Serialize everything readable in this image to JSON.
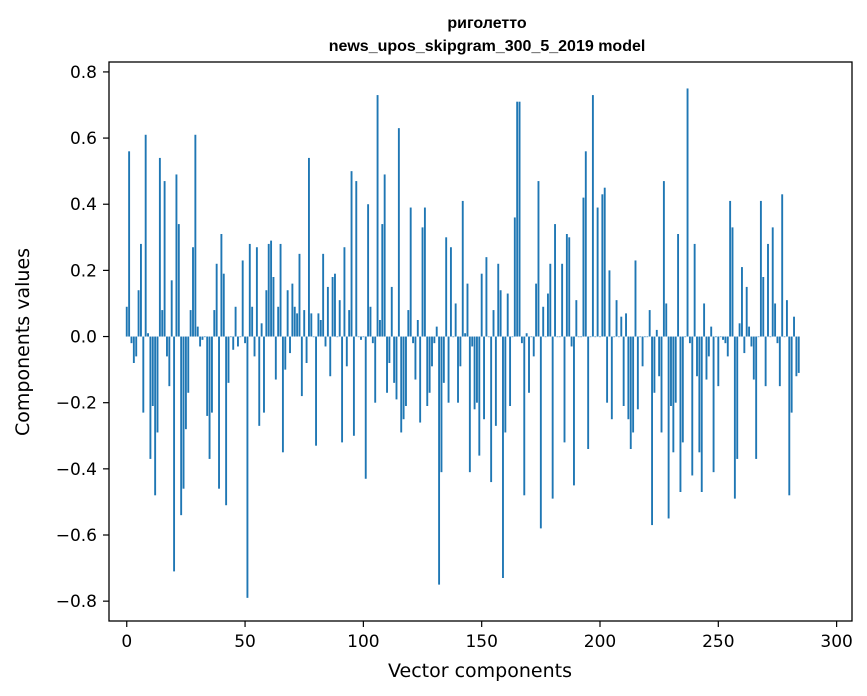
{
  "chart_data": {
    "type": "bar",
    "title": "риголетто",
    "subtitle": "news_upos_skipgram_300_5_2019 model",
    "xlabel": "Vector components",
    "ylabel": "Components values",
    "xlim": [
      -7.5,
      306.5
    ],
    "ylim": [
      -0.86,
      0.83
    ],
    "xticks": [
      0,
      50,
      100,
      150,
      200,
      250,
      300
    ],
    "yticks": [
      -0.8,
      -0.6,
      -0.4,
      -0.2,
      0.0,
      0.2,
      0.4,
      0.6,
      0.8
    ],
    "xtick_labels": [
      "0",
      "50",
      "100",
      "150",
      "200",
      "250",
      "300"
    ],
    "ytick_labels": [
      "−0.8",
      "−0.6",
      "−0.4",
      "−0.2",
      "0.0",
      "0.2",
      "0.4",
      "0.6",
      "0.8"
    ],
    "grid": false,
    "bar_color": "#1f77b4",
    "values": [
      0.09,
      0.56,
      -0.02,
      -0.08,
      -0.06,
      0.14,
      0.28,
      -0.23,
      0.61,
      0.01,
      -0.37,
      -0.21,
      -0.48,
      -0.29,
      0.54,
      0.08,
      0.47,
      -0.06,
      -0.15,
      0.17,
      -0.71,
      0.49,
      0.34,
      -0.54,
      -0.46,
      -0.28,
      -0.17,
      0.08,
      0.27,
      0.61,
      0.03,
      -0.03,
      -0.01,
      0.0,
      -0.24,
      -0.37,
      -0.23,
      0.08,
      0.22,
      -0.46,
      0.31,
      0.19,
      -0.51,
      -0.14,
      0.0,
      -0.04,
      0.09,
      -0.03,
      0.0,
      0.23,
      -0.02,
      -0.79,
      0.28,
      0.09,
      -0.06,
      0.27,
      -0.27,
      0.04,
      -0.23,
      0.14,
      0.28,
      0.29,
      0.18,
      -0.13,
      0.09,
      0.28,
      -0.35,
      -0.1,
      0.14,
      -0.05,
      0.16,
      0.09,
      0.07,
      0.25,
      -0.18,
      0.08,
      -0.08,
      0.54,
      0.07,
      0.0,
      -0.33,
      0.07,
      0.05,
      0.25,
      -0.03,
      0.15,
      -0.12,
      0.18,
      0.19,
      0.0,
      0.11,
      -0.32,
      0.27,
      -0.09,
      0.08,
      0.5,
      -0.3,
      0.47,
      0.0,
      -0.01,
      0.0,
      -0.43,
      0.4,
      0.09,
      -0.02,
      -0.2,
      0.73,
      0.05,
      0.34,
      0.49,
      -0.17,
      -0.08,
      0.15,
      -0.14,
      -0.19,
      0.63,
      -0.29,
      -0.25,
      -0.21,
      0.08,
      0.39,
      -0.02,
      -0.13,
      0.05,
      -0.26,
      0.33,
      0.39,
      -0.21,
      -0.17,
      -0.09,
      -0.02,
      0.03,
      -0.75,
      -0.41,
      -0.14,
      0.3,
      -0.2,
      0.27,
      0.0,
      0.1,
      -0.2,
      -0.09,
      0.41,
      0.01,
      0.16,
      -0.41,
      -0.03,
      -0.22,
      -0.2,
      -0.36,
      0.19,
      -0.25,
      0.24,
      0.0,
      -0.44,
      0.08,
      -0.27,
      0.22,
      0.14,
      -0.73,
      -0.29,
      0.13,
      -0.21,
      0.0,
      0.36,
      0.71,
      0.71,
      -0.02,
      -0.48,
      0.01,
      -0.17,
      0.0,
      -0.06,
      0.16,
      0.47,
      -0.58,
      0.09,
      0.0,
      0.13,
      0.22,
      -0.49,
      0.34,
      0.0,
      0.0,
      0.22,
      -0.32,
      0.31,
      0.3,
      -0.03,
      -0.45,
      0.11,
      0.0,
      0.0,
      0.42,
      0.56,
      -0.34,
      0.0,
      0.73,
      0.0,
      0.39,
      0.0,
      0.43,
      0.45,
      -0.2,
      0.2,
      -0.25,
      0.0,
      0.11,
      0.0,
      0.06,
      -0.21,
      0.07,
      -0.25,
      -0.34,
      -0.29,
      0.23,
      -0.22,
      0.0,
      -0.09,
      0.0,
      0.0,
      0.08,
      -0.57,
      -0.17,
      0.02,
      -0.12,
      -0.29,
      0.47,
      0.1,
      -0.55,
      -0.21,
      -0.35,
      -0.2,
      0.31,
      -0.47,
      -0.32,
      0.0,
      0.75,
      -0.02,
      -0.42,
      0.28,
      -0.12,
      -0.35,
      -0.47,
      0.1,
      -0.13,
      -0.06,
      0.03,
      -0.41,
      0.0,
      -0.15,
      0.0,
      -0.01,
      -0.02,
      -0.06,
      0.41,
      0.33,
      -0.49,
      -0.37,
      0.04,
      0.21,
      -0.05,
      0.15,
      0.03,
      -0.03,
      -0.13,
      -0.37,
      0.0,
      0.41,
      0.18,
      -0.15,
      0.28,
      0.0,
      0.33,
      0.1,
      -0.02,
      -0.15,
      0.43,
      0.0,
      0.11,
      -0.48,
      -0.23,
      0.06,
      -0.12,
      -0.11
    ]
  }
}
